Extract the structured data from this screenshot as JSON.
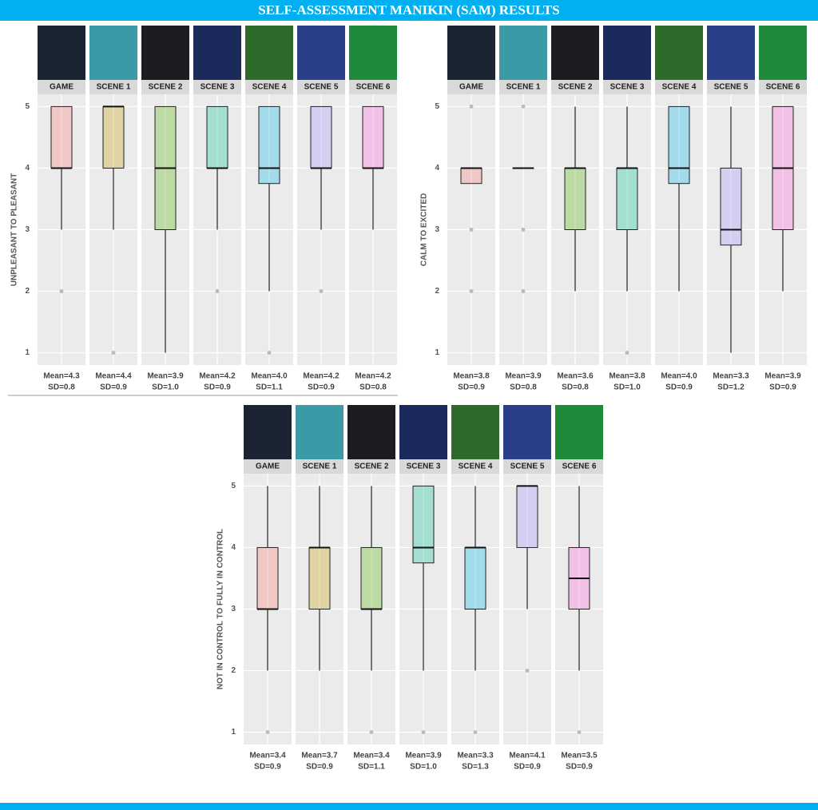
{
  "title": "SELF-ASSESSMENT MANIKIN (SAM) RESULTS",
  "chart_data": [
    {
      "type": "box",
      "ylabel": "UNPLEASANT TO PLEASANT",
      "categories": [
        "GAME",
        "SCENE 1",
        "SCENE 2",
        "SCENE 3",
        "SCENE 4",
        "SCENE 5",
        "SCENE 6"
      ],
      "colors": [
        "#f8766d",
        "#c49a00",
        "#53b400",
        "#00c094",
        "#00b6eb",
        "#a58aff",
        "#fb61d7"
      ],
      "ylim": [
        0.8,
        5.2
      ],
      "yticks": [
        1,
        2,
        3,
        4,
        5
      ],
      "grid": true,
      "boxes": [
        {
          "low": 3,
          "q1": 4,
          "median": 4,
          "q3": 5,
          "high": 5,
          "outliers": [
            2
          ]
        },
        {
          "low": 3,
          "q1": 4,
          "median": 5,
          "q3": 5,
          "high": 5,
          "outliers": [
            1
          ]
        },
        {
          "low": 1,
          "q1": 3,
          "median": 4,
          "q3": 5,
          "high": 5,
          "outliers": []
        },
        {
          "low": 3,
          "q1": 4,
          "median": 4,
          "q3": 5,
          "high": 5,
          "outliers": [
            2
          ]
        },
        {
          "low": 2,
          "q1": 3.75,
          "median": 4,
          "q3": 5,
          "high": 5,
          "outliers": [
            1
          ]
        },
        {
          "low": 3,
          "q1": 4,
          "median": 4,
          "q3": 5,
          "high": 5,
          "outliers": [
            2
          ]
        },
        {
          "low": 3,
          "q1": 4,
          "median": 4,
          "q3": 5,
          "high": 5,
          "outliers": []
        }
      ],
      "mean_labels": [
        "Mean=4.3",
        "Mean=4.4",
        "Mean=3.9",
        "Mean=4.2",
        "Mean=4.0",
        "Mean=4.2",
        "Mean=4.2"
      ],
      "sd_labels": [
        "SD=0.8",
        "SD=0.9",
        "SD=1.0",
        "SD=0.9",
        "SD=1.1",
        "SD=0.9",
        "SD=0.8"
      ]
    },
    {
      "type": "box",
      "ylabel": "CALM TO EXCITED",
      "categories": [
        "GAME",
        "SCENE 1",
        "SCENE 2",
        "SCENE 3",
        "SCENE 4",
        "SCENE 5",
        "SCENE 6"
      ],
      "colors": [
        "#f8766d",
        "#c49a00",
        "#53b400",
        "#00c094",
        "#00b6eb",
        "#a58aff",
        "#fb61d7"
      ],
      "ylim": [
        0.8,
        5.2
      ],
      "yticks": [
        1,
        2,
        3,
        4,
        5
      ],
      "grid": true,
      "boxes": [
        {
          "low": 3.75,
          "q1": 3.75,
          "median": 4,
          "q3": 4,
          "high": 4,
          "outliers": [
            5,
            3,
            2
          ]
        },
        {
          "low": 4,
          "q1": 4,
          "median": 4,
          "q3": 4,
          "high": 4,
          "outliers": [
            2,
            3,
            5
          ]
        },
        {
          "low": 2,
          "q1": 3,
          "median": 4,
          "q3": 4,
          "high": 5,
          "outliers": []
        },
        {
          "low": 2,
          "q1": 3,
          "median": 4,
          "q3": 4,
          "high": 5,
          "outliers": [
            1
          ]
        },
        {
          "low": 2,
          "q1": 3.75,
          "median": 4,
          "q3": 5,
          "high": 5,
          "outliers": []
        },
        {
          "low": 1,
          "q1": 2.75,
          "median": 3,
          "q3": 4,
          "high": 5,
          "outliers": []
        },
        {
          "low": 2,
          "q1": 3,
          "median": 4,
          "q3": 5,
          "high": 5,
          "outliers": []
        }
      ],
      "mean_labels": [
        "Mean=3.8",
        "Mean=3.9",
        "Mean=3.6",
        "Mean=3.8",
        "Mean=4.0",
        "Mean=3.3",
        "Mean=3.9"
      ],
      "sd_labels": [
        "SD=0.9",
        "SD=0.8",
        "SD=0.8",
        "SD=1.0",
        "SD=0.9",
        "SD=1.2",
        "SD=0.9"
      ]
    },
    {
      "type": "box",
      "ylabel": "NOT IN CONTROL TO FULLY IN CONTROL",
      "categories": [
        "GAME",
        "SCENE 1",
        "SCENE 2",
        "SCENE 3",
        "SCENE 4",
        "SCENE 5",
        "SCENE 6"
      ],
      "colors": [
        "#f8766d",
        "#c49a00",
        "#53b400",
        "#00c094",
        "#00b6eb",
        "#a58aff",
        "#fb61d7"
      ],
      "ylim": [
        0.8,
        5.2
      ],
      "yticks": [
        1,
        2,
        3,
        4,
        5
      ],
      "grid": true,
      "boxes": [
        {
          "low": 2,
          "q1": 3,
          "median": 3,
          "q3": 4,
          "high": 5,
          "outliers": [
            1
          ]
        },
        {
          "low": 2,
          "q1": 3,
          "median": 4,
          "q3": 4,
          "high": 5,
          "outliers": []
        },
        {
          "low": 2,
          "q1": 3,
          "median": 3,
          "q3": 4,
          "high": 5,
          "outliers": [
            1
          ]
        },
        {
          "low": 2,
          "q1": 3.75,
          "median": 4,
          "q3": 5,
          "high": 5,
          "outliers": [
            1
          ]
        },
        {
          "low": 2,
          "q1": 3,
          "median": 4,
          "q3": 4,
          "high": 5,
          "outliers": [
            1
          ]
        },
        {
          "low": 3,
          "q1": 4,
          "median": 5,
          "q3": 5,
          "high": 5,
          "outliers": [
            2
          ]
        },
        {
          "low": 2,
          "q1": 3,
          "median": 3.5,
          "q3": 4,
          "high": 5,
          "outliers": [
            1
          ]
        }
      ],
      "mean_labels": [
        "Mean=3.4",
        "Mean=3.7",
        "Mean=3.4",
        "Mean=3.9",
        "Mean=3.3",
        "Mean=4.1",
        "Mean=3.5"
      ],
      "sd_labels": [
        "SD=0.9",
        "SD=0.9",
        "SD=1.1",
        "SD=1.0",
        "SD=1.3",
        "SD=0.9",
        "SD=0.9"
      ]
    }
  ]
}
